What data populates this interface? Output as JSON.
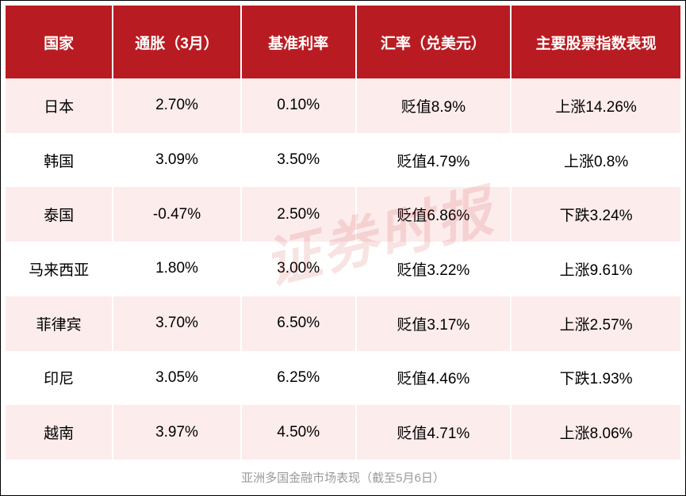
{
  "table": {
    "type": "table",
    "header_bg": "#b81c22",
    "header_text_color": "#ffffff",
    "row_even_bg": "#fdecec",
    "row_odd_bg": "#ffffff",
    "text_color": "#000000",
    "header_fontsize": 19,
    "cell_fontsize": 19,
    "columns": [
      {
        "label": "国家",
        "width": "16%"
      },
      {
        "label": "通胀（3月）",
        "width": "19%"
      },
      {
        "label": "基准利率",
        "width": "17%"
      },
      {
        "label": "汇率（兑美元）",
        "width": "23%"
      },
      {
        "label": "主要股票指数表现",
        "width": "25%"
      }
    ],
    "rows": [
      {
        "country": "日本",
        "inflation": "2.70%",
        "rate": "0.10%",
        "fx": "贬值8.9%",
        "index": "上涨14.26%"
      },
      {
        "country": "韩国",
        "inflation": "3.09%",
        "rate": "3.50%",
        "fx": "贬值4.79%",
        "index": "上涨0.8%"
      },
      {
        "country": "泰国",
        "inflation": "-0.47%",
        "rate": "2.50%",
        "fx": "贬值6.86%",
        "index": "下跌3.24%"
      },
      {
        "country": "马来西亚",
        "inflation": "1.80%",
        "rate": "3.00%",
        "fx": "贬值3.22%",
        "index": "上涨9.61%"
      },
      {
        "country": "菲律宾",
        "inflation": "3.70%",
        "rate": "6.50%",
        "fx": "贬值3.17%",
        "index": "上涨2.57%"
      },
      {
        "country": "印尼",
        "inflation": "3.05%",
        "rate": "6.25%",
        "fx": "贬值4.46%",
        "index": "下跌1.93%"
      },
      {
        "country": "越南",
        "inflation": "3.97%",
        "rate": "4.50%",
        "fx": "贬值4.71%",
        "index": "上涨8.06%"
      }
    ]
  },
  "watermark": {
    "text": "证券时报",
    "color": "rgba(204,47,47,0.14)",
    "fontsize": 70,
    "rotation": -14
  },
  "caption": {
    "text": "亚洲多国金融市场表现（截至5月6日）",
    "color": "#9a9a9a",
    "fontsize": 15
  }
}
